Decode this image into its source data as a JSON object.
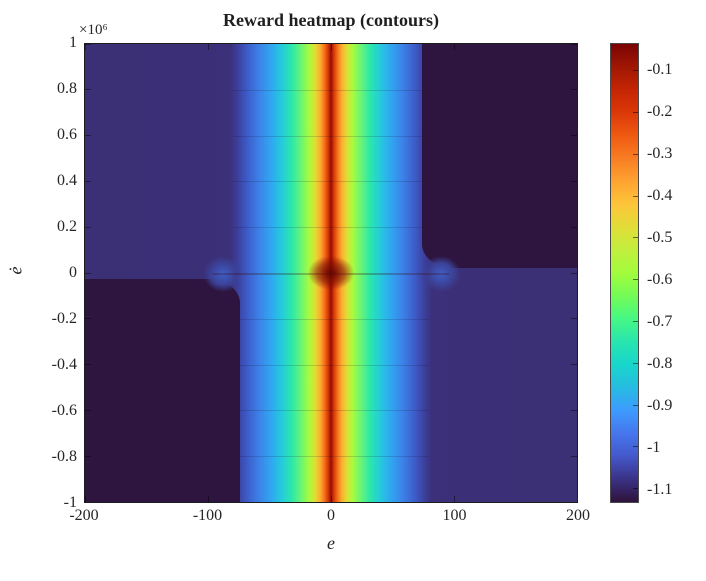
{
  "figure": {
    "title": "Reward heatmap (contours)"
  },
  "axes": {
    "x": {
      "label": "e",
      "tick_values": [
        -200,
        -100,
        0,
        100,
        200
      ],
      "lim": [
        -200,
        200
      ]
    },
    "y": {
      "label": "ė",
      "exponent_label": "×10⁶",
      "tick_values": [
        1,
        0.8,
        0.6,
        0.4,
        0.2,
        0,
        -0.2,
        -0.4,
        -0.6,
        -0.8,
        -1
      ],
      "lim": [
        -1,
        1
      ]
    },
    "colorbar": {
      "tick_values": [
        -0.1,
        -0.2,
        -0.3,
        -0.4,
        -0.5,
        -0.6,
        -0.7,
        -0.8,
        -0.9,
        -1,
        -1.1
      ],
      "lim_est": [
        -1.132,
        -0.036
      ]
    }
  },
  "colors": {
    "background_far_field": "#3b2f75",
    "background_darkest": "#2e1540",
    "ridge_peak": "#8f0f05",
    "axis_text": "#262626",
    "band_stops": [
      [
        0,
        "#3b2f75"
      ],
      [
        29.5,
        "#3b3079"
      ],
      [
        31,
        "#3d3f9c"
      ],
      [
        33,
        "#3d5dc9"
      ],
      [
        35.5,
        "#3c83e9"
      ],
      [
        38,
        "#2fa9ef"
      ],
      [
        40,
        "#25cbdc"
      ],
      [
        42,
        "#2be7ac"
      ],
      [
        44,
        "#6cf573"
      ],
      [
        45.6,
        "#a9fb3e"
      ],
      [
        46.8,
        "#e0dd33"
      ],
      [
        47.8,
        "#fcae2f"
      ],
      [
        48.7,
        "#f3701a"
      ],
      [
        49.4,
        "#d93806"
      ],
      [
        50,
        "#8f0f05"
      ],
      [
        50.6,
        "#d93806"
      ],
      [
        51.3,
        "#f3701a"
      ],
      [
        52.2,
        "#fcae2f"
      ],
      [
        53.2,
        "#e0dd33"
      ],
      [
        54.4,
        "#a9fb3e"
      ],
      [
        56,
        "#6cf573"
      ],
      [
        58,
        "#2be7ac"
      ],
      [
        60,
        "#25cbdc"
      ],
      [
        62,
        "#2fa9ef"
      ],
      [
        64.5,
        "#3c83e9"
      ],
      [
        67,
        "#3d5dc9"
      ],
      [
        69,
        "#3d3f9c"
      ],
      [
        70.5,
        "#3b3079"
      ],
      [
        100,
        "#3b2f75"
      ]
    ],
    "colorbar_stops": [
      [
        0,
        "#7a0403"
      ],
      [
        5,
        "#a01703"
      ],
      [
        10,
        "#c42503"
      ],
      [
        15,
        "#db3808"
      ],
      [
        20,
        "#ef5a11"
      ],
      [
        25,
        "#f87d23"
      ],
      [
        30,
        "#fea331"
      ],
      [
        35,
        "#fdc53a"
      ],
      [
        40,
        "#e1dd37"
      ],
      [
        45,
        "#c1ef3e"
      ],
      [
        50,
        "#a2fc3c"
      ],
      [
        55,
        "#73fb56"
      ],
      [
        60,
        "#46f884"
      ],
      [
        65,
        "#28e5af"
      ],
      [
        70,
        "#18d6cb"
      ],
      [
        75,
        "#26bce1"
      ],
      [
        80,
        "#3e9bfe"
      ],
      [
        85,
        "#4676ed"
      ],
      [
        90,
        "#4458cb"
      ],
      [
        95,
        "#3a3285"
      ],
      [
        100,
        "#30123b"
      ]
    ]
  },
  "chart_data": {
    "type": "heatmap",
    "title": "Reward heatmap (contours)",
    "xlabel": "e",
    "ylabel": "ė (×10⁶)",
    "xlim": [
      -200,
      200
    ],
    "ylim": [
      -1000000,
      1000000
    ],
    "x_ticks": [
      -200,
      -100,
      0,
      100,
      200
    ],
    "y_ticks_times_1e6": [
      1,
      0.8,
      0.6,
      0.4,
      0.2,
      0,
      -0.2,
      -0.4,
      -0.6,
      -0.8,
      -1
    ],
    "colorbar_ticks": [
      -0.1,
      -0.2,
      -0.3,
      -0.4,
      -0.5,
      -0.6,
      -0.7,
      -0.8,
      -0.9,
      -1,
      -1.1
    ],
    "value_range_est": [
      -1.13,
      -0.04
    ],
    "colormap": "turbo",
    "grid": false,
    "legend_position": "right-colorbar",
    "pattern_description": "Reward is maximal (≈ -0.05, dark red) along a vertical ridge at e=0, falling symmetrically through orange, yellow, green, cyan and blue to ≈ -1.05 (indigo) by |e|≈75; the ridge widens to |e|≈95 near ė=0 with a small darker peak blob at the origin; the far field is darkest (≈ -1.13) in the quadrants where e and ė have the same sign (top-right: e>0, ė>0; bottom-left: e<0, ė<0)."
  }
}
